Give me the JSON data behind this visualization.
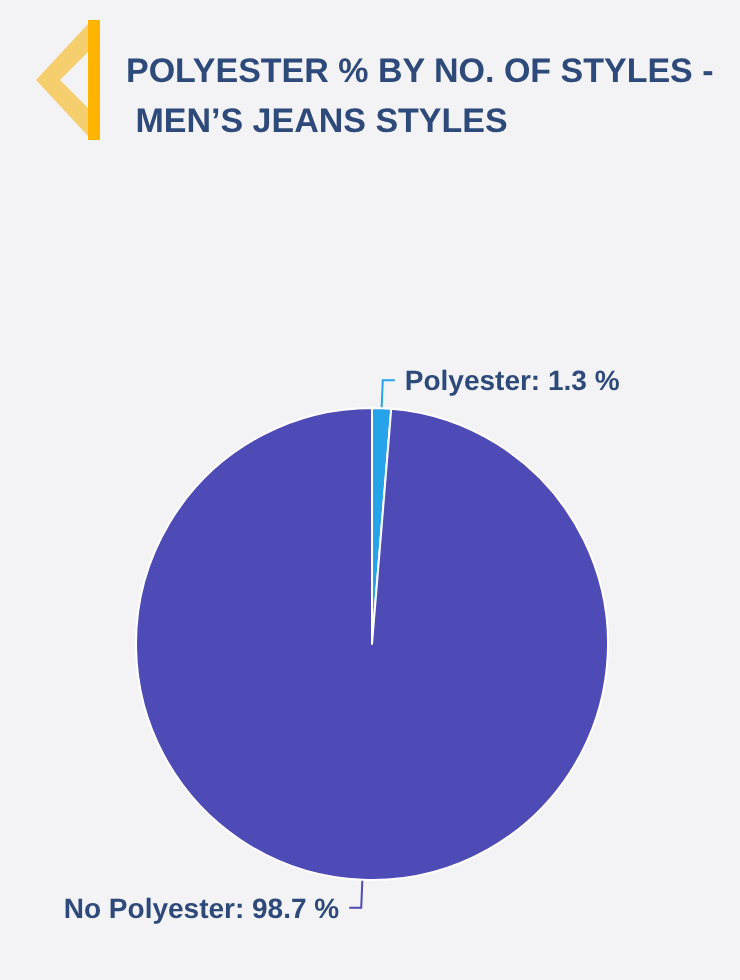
{
  "chart_data": {
    "type": "pie",
    "title": "POLYESTER % BY NO. OF STYLES - MEN’S JEANS STYLES",
    "categories": [
      "Polyester",
      "No Polyester"
    ],
    "values": [
      1.3,
      98.7
    ],
    "colors": [
      "#27a3ea",
      "#4f4bb6"
    ],
    "value_labels": [
      "1.3 %",
      "98.7 %"
    ],
    "legend": false
  }
}
